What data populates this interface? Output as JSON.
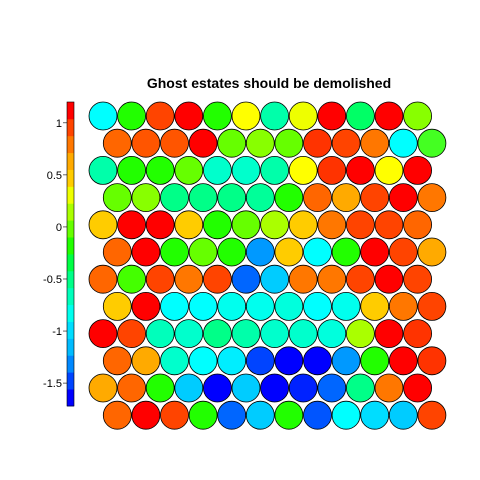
{
  "chart_data": {
    "type": "heatmap",
    "subtype": "hexagonal-som-property-map",
    "title": "Ghost estates should be demolished",
    "colorbar": {
      "ticks": [
        1,
        0.5,
        0,
        -0.5,
        -1,
        -1.5
      ],
      "tick_labels": [
        "1",
        "0.5",
        "0",
        "-0.5",
        "-1",
        "-1.5"
      ],
      "range": [
        -1.72,
        1.2
      ],
      "colors": [
        "#0000ff",
        "#0044ff",
        "#0088ff",
        "#00bbff",
        "#00ddff",
        "#00ffee",
        "#00ffbb",
        "#00ff88",
        "#00ff44",
        "#22ff00",
        "#66ff00",
        "#aaff00",
        "#eeff00",
        "#ffcc00",
        "#ffaa00",
        "#ff7700",
        "#ff4400",
        "#ff0000"
      ]
    },
    "grid": {
      "rows": 12,
      "cols": 12,
      "odd_rows_offset": true
    },
    "cells": [
      [
        "#00ffff",
        "#22ff00",
        "#ff4400",
        "#ff0000",
        "#22ff00",
        "#ffff00",
        "#00ffaa",
        "#eeff00",
        "#ff0000",
        "#00ff66",
        "#ff0000",
        "#88ff00"
      ],
      [
        "#ff6600",
        "#ff5500",
        "#ff5500",
        "#ff0000",
        "#66ff00",
        "#88ff00",
        "#66ff00",
        "#ff3300",
        "#ff4400",
        "#ff7700",
        "#00ffff",
        "#44ff22"
      ],
      [
        "#00ffaa",
        "#22ff00",
        "#22ff00",
        "#66ff00",
        "#00ffcc",
        "#00ffcc",
        "#00ffaa",
        "#ffff00",
        "#ff3300",
        "#ff0000",
        "#ffff00",
        "#ff0000"
      ],
      [
        "#66ff00",
        "#88ff00",
        "#00ff88",
        "#00ff88",
        "#00ff88",
        "#00ff99",
        "#22ff00",
        "#ff6600",
        "#ffaa00",
        "#ff4400",
        "#ff0000",
        "#ff7700"
      ],
      [
        "#ffcc00",
        "#ff0000",
        "#ff0000",
        "#ffcc00",
        "#22ff00",
        "#66ff00",
        "#aaff00",
        "#ffcc00",
        "#ff7700",
        "#ff4400",
        "#ff4400",
        "#ff6600"
      ],
      [
        "#ff6600",
        "#ff0000",
        "#22ff00",
        "#66ff00",
        "#22ff00",
        "#0099ff",
        "#ffcc00",
        "#00ffff",
        "#22ff00",
        "#ff0000",
        "#ff4400",
        "#ffaa00"
      ],
      [
        "#ff6600",
        "#44ff00",
        "#ff4400",
        "#ff7700",
        "#ff4400",
        "#0066ff",
        "#00ccff",
        "#ff7700",
        "#ff7700",
        "#ff4400",
        "#ff0000",
        "#ff4400"
      ],
      [
        "#ffcc00",
        "#ff0000",
        "#00ffff",
        "#00ffff",
        "#00ffee",
        "#00ffee",
        "#00ffdd",
        "#00ffff",
        "#00ffee",
        "#ffcc00",
        "#ff7700",
        "#ff4400"
      ],
      [
        "#ff0000",
        "#ff4400",
        "#00ffbb",
        "#00ffcc",
        "#00ff88",
        "#00ffaa",
        "#00ffcc",
        "#00ffcc",
        "#00ffdd",
        "#aaff00",
        "#ff0000",
        "#ff3300"
      ],
      [
        "#ff6600",
        "#ffaa00",
        "#00ffcc",
        "#00ffff",
        "#00eeff",
        "#0044ff",
        "#0000ff",
        "#0000ff",
        "#0099ff",
        "#22ff00",
        "#ff0000",
        "#ff3300"
      ],
      [
        "#ffaa00",
        "#ff6600",
        "#22ff00",
        "#00ccff",
        "#0000ff",
        "#00ccff",
        "#0000ff",
        "#0022ff",
        "#0066ff",
        "#00ff88",
        "#ff7700",
        "#ff0000"
      ],
      [
        "#ff6600",
        "#ff0000",
        "#ff4400",
        "#22ff00",
        "#0066ff",
        "#00ccff",
        "#22ff00",
        "#0055ff",
        "#00ffff",
        "#00ddff",
        "#00ccff",
        "#ff4400"
      ]
    ]
  }
}
